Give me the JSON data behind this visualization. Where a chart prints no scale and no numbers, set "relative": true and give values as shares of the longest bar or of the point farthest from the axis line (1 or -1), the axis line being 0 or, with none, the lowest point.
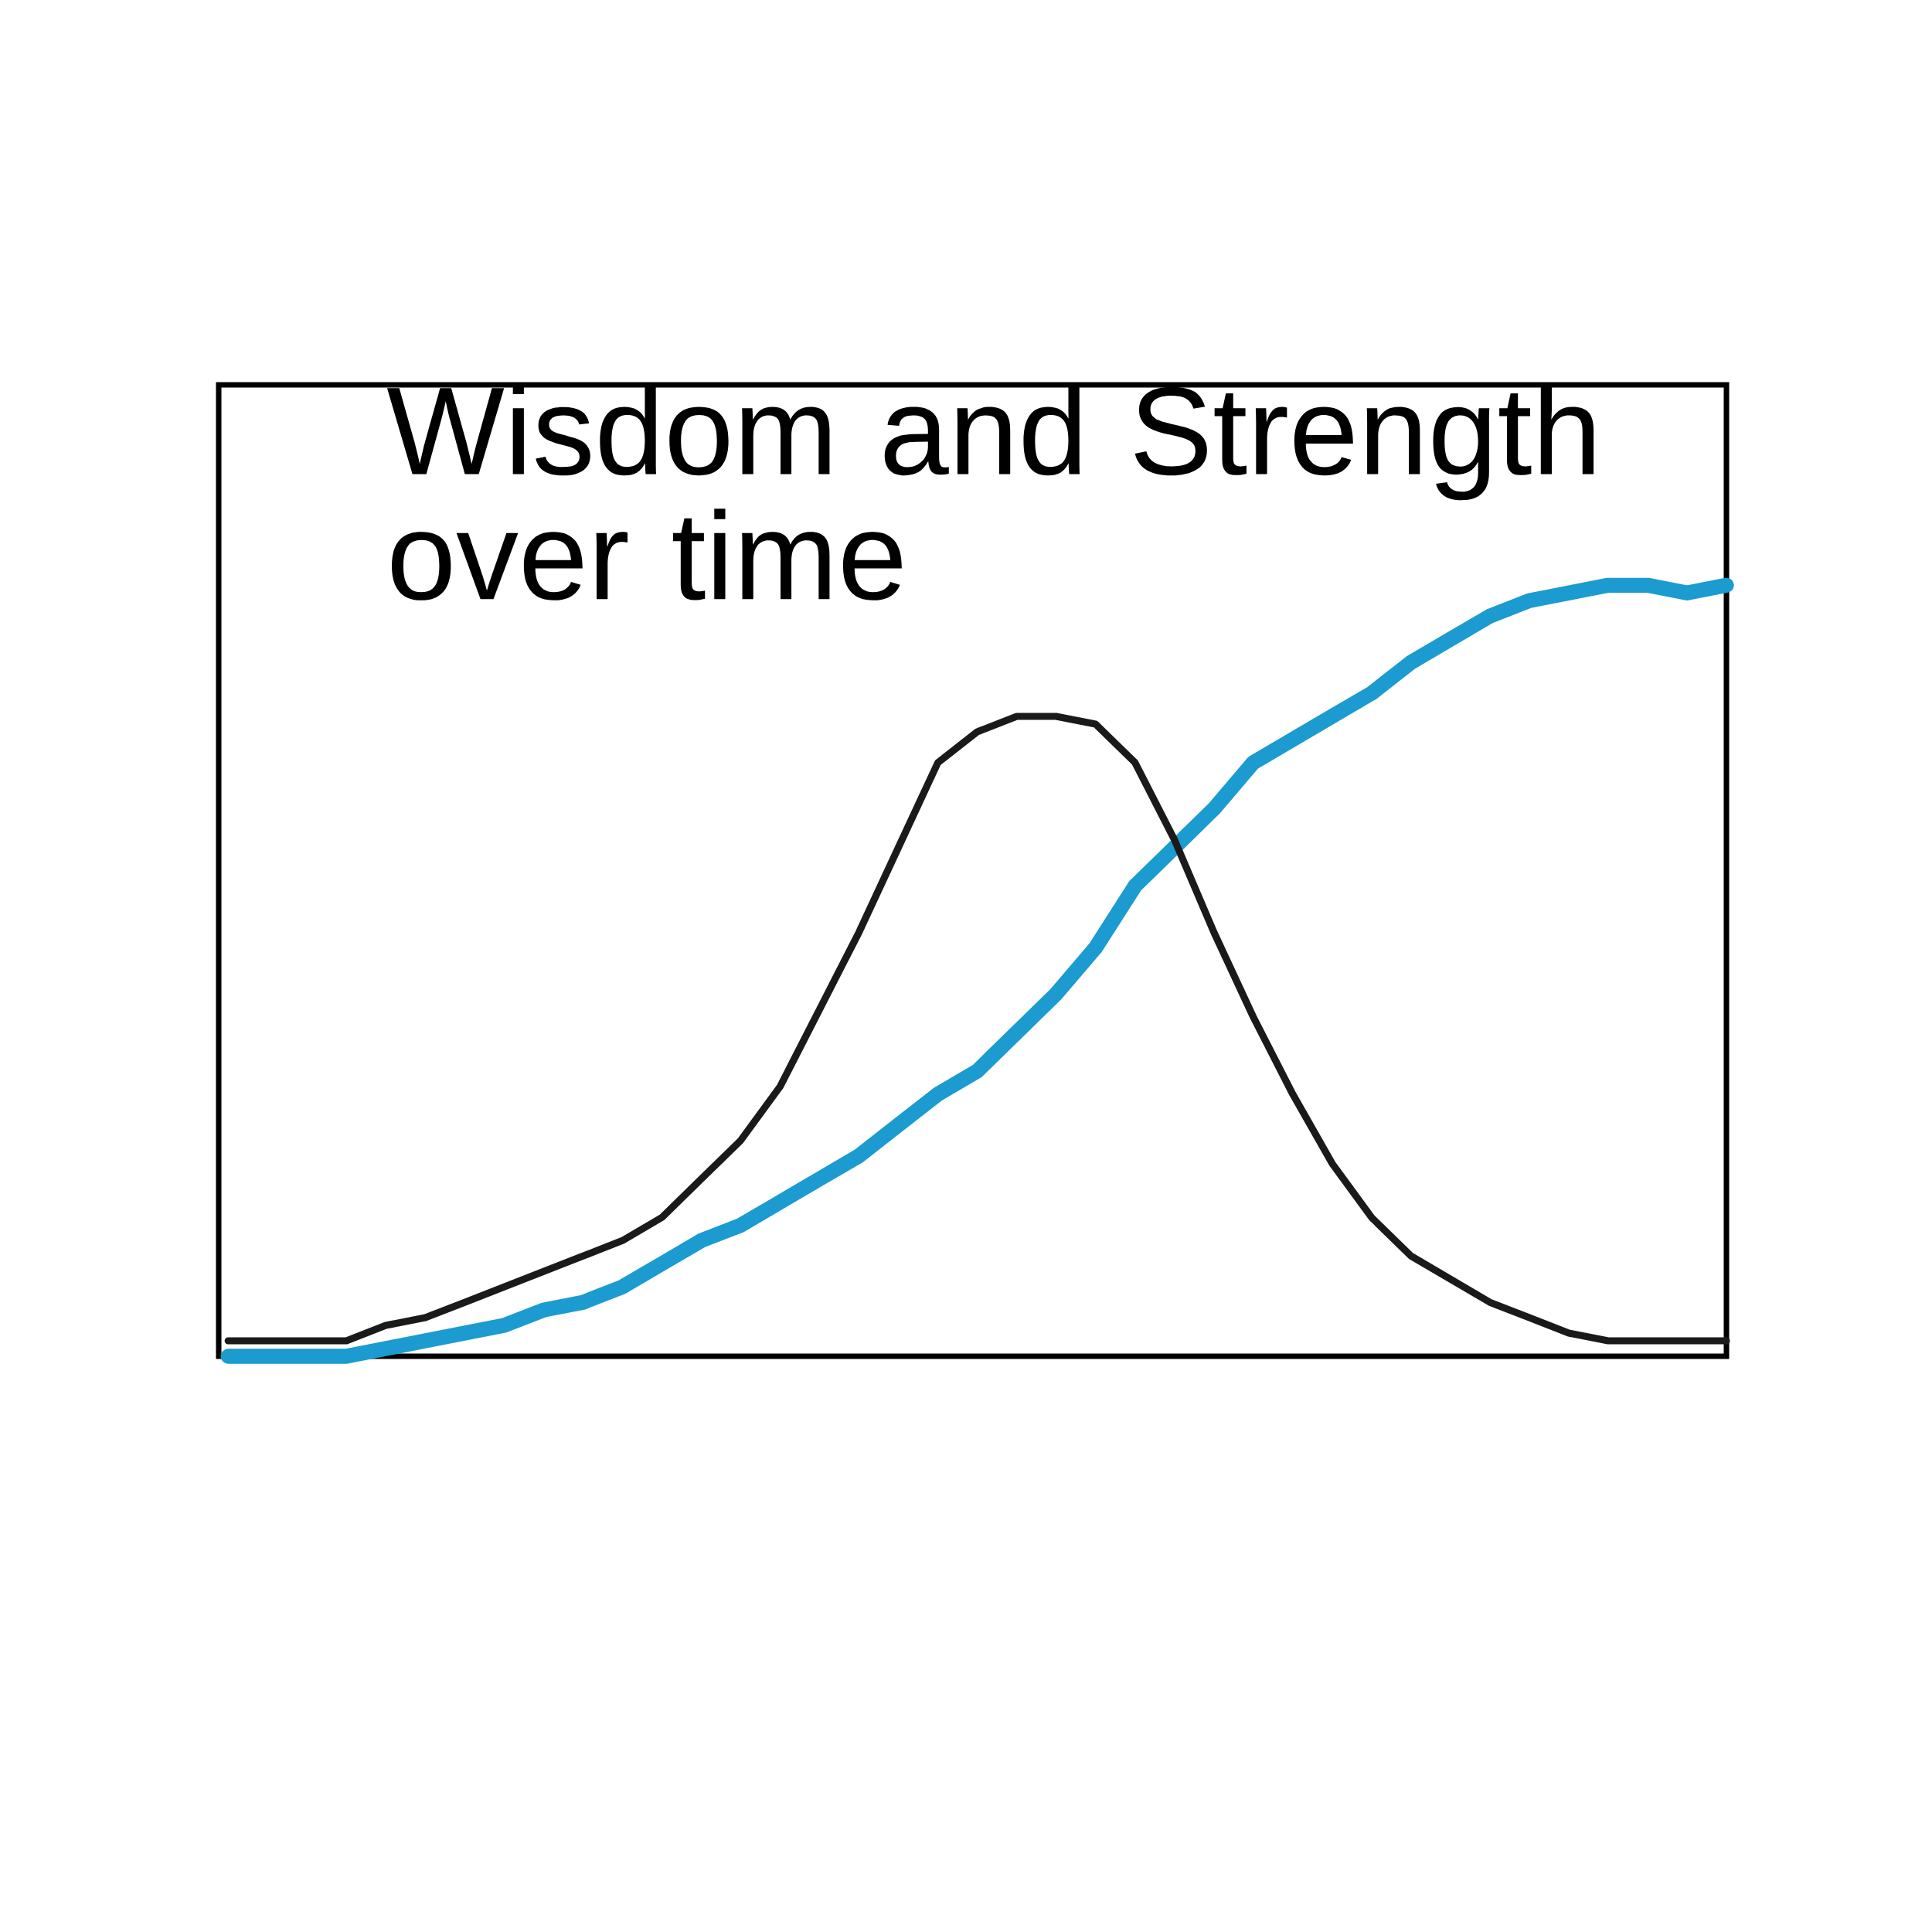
{
  "chart_data": {
    "type": "line",
    "title": "Wisdom and Strength over time",
    "relative": true,
    "categories": [
      null,
      null,
      null,
      null,
      null,
      null,
      null,
      null,
      null,
      null,
      null,
      null,
      null,
      null,
      null,
      null,
      null,
      null,
      null,
      null,
      null,
      null,
      null,
      null,
      null,
      null,
      null,
      null,
      null,
      null,
      null,
      null,
      null,
      null,
      null,
      null,
      null,
      null,
      null
    ],
    "series": [
      {
        "color": "#1b9bcf",
        "values": [
          0,
          0,
          0,
          0,
          0.01,
          0.02,
          0.03,
          0.04,
          0.06,
          0.07,
          0.09,
          0.12,
          0.15,
          0.17,
          0.2,
          0.23,
          0.26,
          0.3,
          0.34,
          0.37,
          0.42,
          0.47,
          0.53,
          0.61,
          0.66,
          0.71,
          0.77,
          0.8,
          0.83,
          0.86,
          0.9,
          0.93,
          0.96,
          0.98,
          0.99,
          1,
          1,
          0.99,
          1
        ]
      },
      {
        "color": "#1a1a1a",
        "values": [
          0.02,
          0.02,
          0.02,
          0.02,
          0.04,
          0.05,
          0.07,
          0.09,
          0.11,
          0.13,
          0.15,
          0.18,
          0.23,
          0.28,
          0.35,
          0.45,
          0.55,
          0.66,
          0.77,
          0.81,
          0.83,
          0.83,
          0.82,
          0.77,
          0.67,
          0.55,
          0.44,
          0.34,
          0.25,
          0.18,
          0.13,
          0.1,
          0.07,
          0.05,
          0.03,
          0.02,
          0.02,
          0.02,
          0.02
        ]
      }
    ]
  }
}
